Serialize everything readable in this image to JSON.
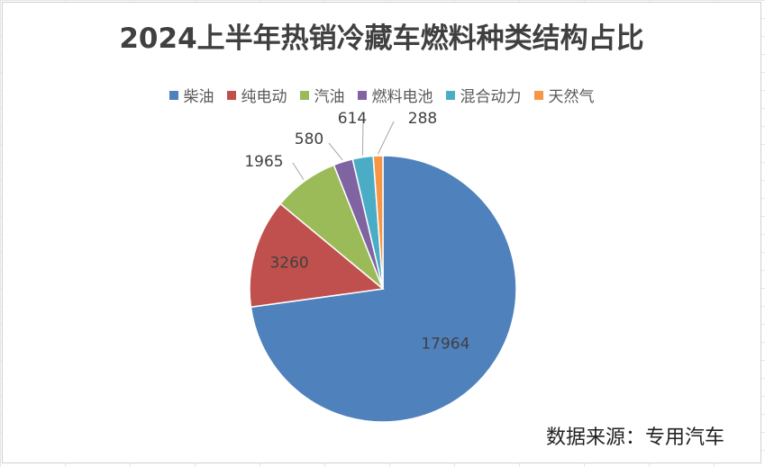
{
  "chart_data": {
    "type": "pie",
    "title": "2024上半年热销冷藏车燃料种类结构占比",
    "categories": [
      "柴油",
      "纯电动",
      "汽油",
      "燃料电池",
      "混合动力",
      "天然气"
    ],
    "values": [
      17964,
      3260,
      1965,
      580,
      614,
      288
    ],
    "data_labels": [
      "17964",
      "3260",
      "1965",
      "580",
      "614",
      "288"
    ],
    "colors": [
      "#4F81BD",
      "#C0504D",
      "#9BBB59",
      "#8064A2",
      "#4BACC6",
      "#F79646"
    ],
    "legend_position": "top",
    "start_angle": "12 o'clock, clockwise"
  },
  "source_note": "数据来源：专用汽车"
}
